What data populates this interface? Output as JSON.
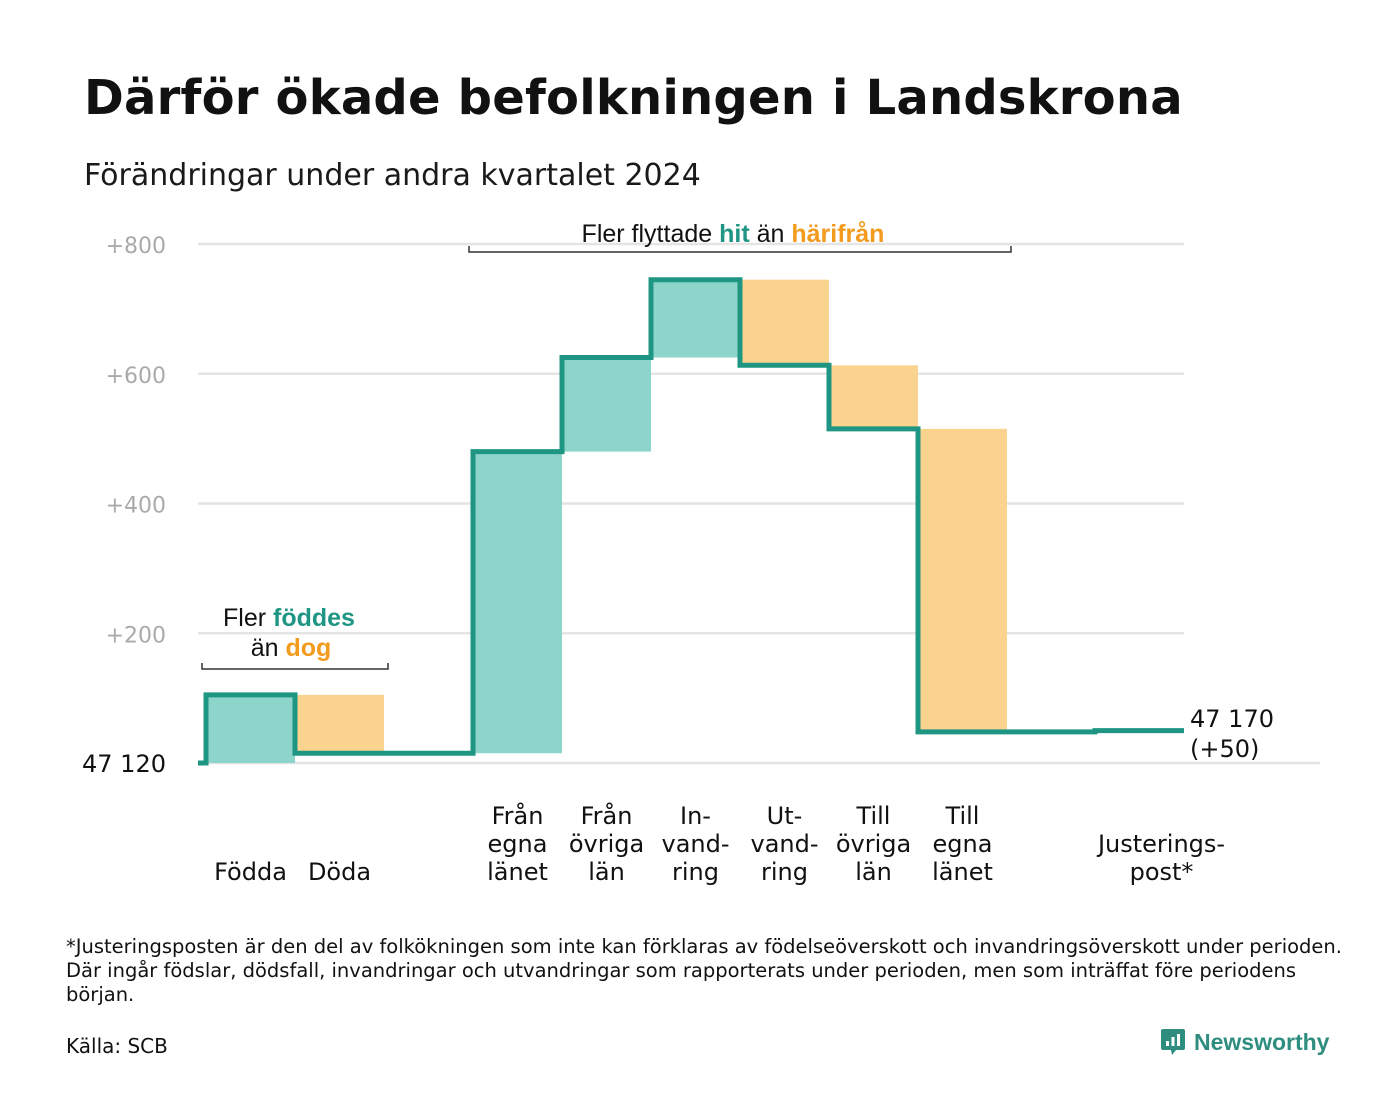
{
  "title": "Därför ökade befolkningen i Landskrona",
  "subtitle": "Förändringar under andra kvartalet 2024",
  "footnote": "*Justeringsposten är den del av folkökningen som inte kan förklaras av födelseöverskott och invandringsöverskott under perioden. Där ingår födslar, dödsfall, invandringar och utvandringar som rapporterats under perioden, men som inträffat före periodens början.",
  "source": "Källa: SCB",
  "brand": {
    "name": "Newsworthy",
    "icon": "newsworthy-logo-icon"
  },
  "colors": {
    "inflow": "#8dd5cb",
    "outflow": "#fad48e",
    "line": "#1f9583",
    "hit": "#1f9583",
    "harifran": "#f29b1d",
    "grid": "#e4e4e4",
    "tick": "#aaaaaa"
  },
  "annotations": {
    "births": {
      "line1_prefix": "Fler ",
      "line1_highlight": "föddes",
      "line2_prefix": "än ",
      "line2_highlight": "dog"
    },
    "migration": {
      "prefix": "Fler flyttade ",
      "highlight1": "hit",
      "middle": " än ",
      "highlight2": "härifrån"
    }
  },
  "chart_data": {
    "type": "waterfall",
    "title": "Därför ökade befolkningen i Landskrona",
    "subtitle": "Förändringar under andra kvartalet 2024",
    "start_label": "47  120",
    "end_label_line1": "47 170",
    "end_label_line2": "(+50)",
    "start_value": 47120,
    "end_value": 47170,
    "total_change": 50,
    "y_ticks": [
      {
        "value": 200,
        "label": "+200"
      },
      {
        "value": 400,
        "label": "+400"
      },
      {
        "value": 600,
        "label": "+600"
      },
      {
        "value": 800,
        "label": "+800"
      }
    ],
    "ylim": [
      0,
      800
    ],
    "grid": true,
    "steps": [
      {
        "label_lines": [
          "Födda"
        ],
        "change": 105,
        "kind": "inflow"
      },
      {
        "label_lines": [
          "Döda"
        ],
        "change": -90,
        "kind": "outflow"
      },
      {
        "label_lines": [
          "Från",
          "egna",
          "länet"
        ],
        "change": 465,
        "kind": "inflow"
      },
      {
        "label_lines": [
          "Från",
          "övriga",
          "län"
        ],
        "change": 145,
        "kind": "inflow"
      },
      {
        "label_lines": [
          "In-",
          "vand-",
          "ring"
        ],
        "change": 120,
        "kind": "inflow"
      },
      {
        "label_lines": [
          "Ut-",
          "vand-",
          "ring"
        ],
        "change": -132,
        "kind": "outflow"
      },
      {
        "label_lines": [
          "Till",
          "övriga",
          "län"
        ],
        "change": -98,
        "kind": "outflow"
      },
      {
        "label_lines": [
          "Till",
          "egna",
          "länet"
        ],
        "change": -467,
        "kind": "outflow"
      },
      {
        "label_lines": [
          "Justerings-",
          "post*"
        ],
        "change": 2,
        "kind": "adjustment"
      }
    ]
  }
}
